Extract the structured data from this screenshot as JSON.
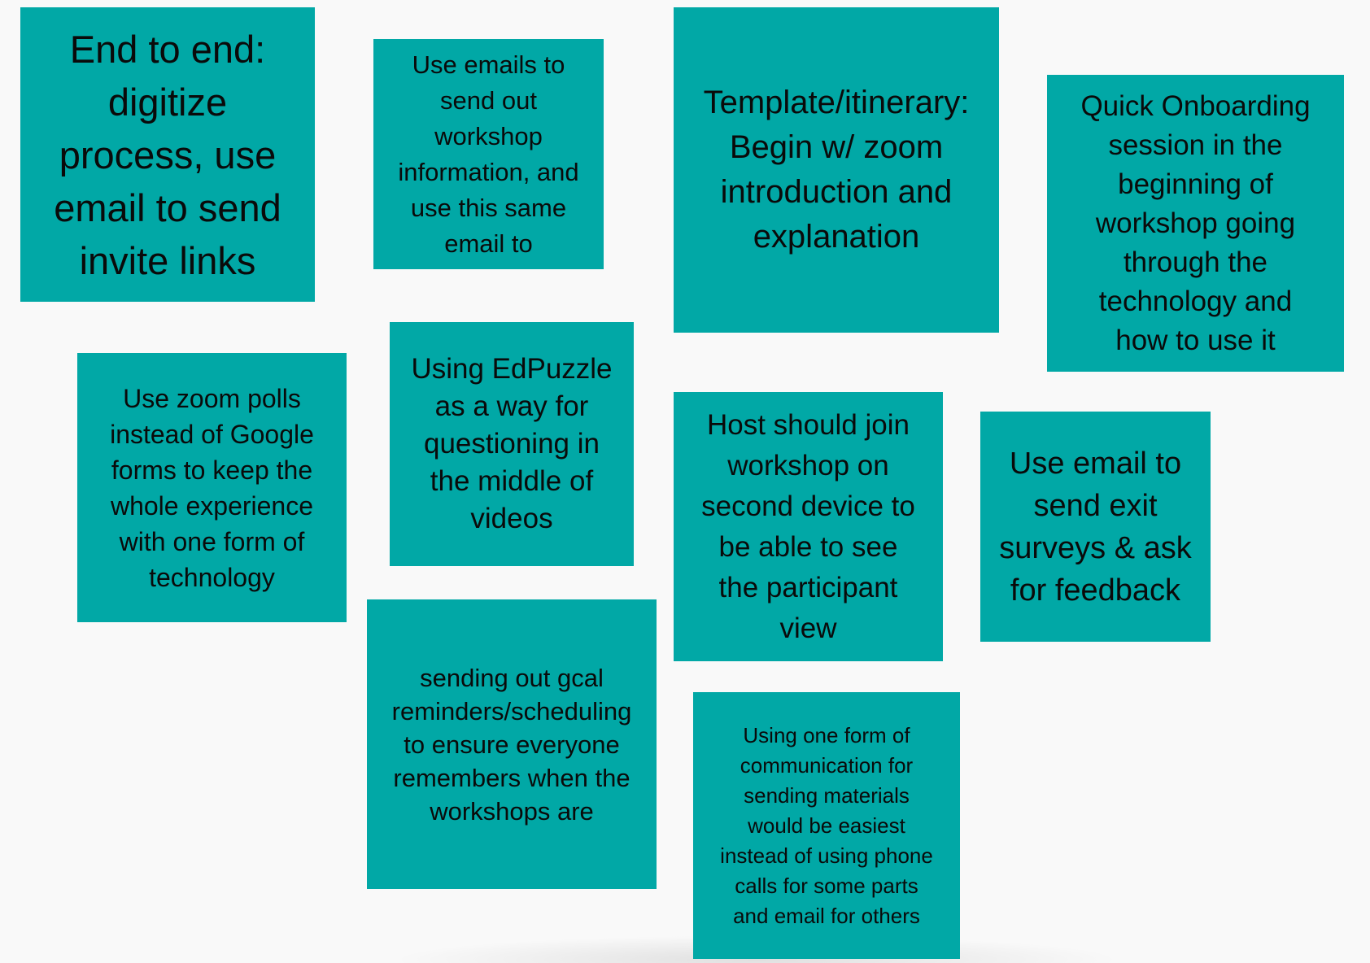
{
  "board": {
    "note_color": "#01a8a6",
    "background_color": "#f9f9f9"
  },
  "notes": [
    {
      "id": "end-to-end",
      "text": "End to end:\ndigitize\nprocess, use\nemail to send\ninvite links"
    },
    {
      "id": "use-emails",
      "text": "Use emails to\nsend out\nworkshop\ninformation, and\nuse this same\nemail to"
    },
    {
      "id": "template-itinerary",
      "text": "Template/itinerary:\nBegin w/ zoom\nintroduction and\nexplanation"
    },
    {
      "id": "quick-onboarding",
      "text": "Quick Onboarding\nsession in the\nbeginning of\nworkshop going\nthrough the\ntechnology and\nhow to use it"
    },
    {
      "id": "zoom-polls",
      "text": "Use zoom polls\ninstead of Google\nforms to keep the\nwhole experience\nwith one form of\ntechnology"
    },
    {
      "id": "edpuzzle",
      "text": "Using EdPuzzle\nas a way for\nquestioning in\nthe middle of\nvideos"
    },
    {
      "id": "host-second-device",
      "text": "Host should join\nworkshop on\nsecond device to\nbe able to see\nthe participant\nview"
    },
    {
      "id": "exit-surveys",
      "text": "Use email to\nsend exit\nsurveys & ask\nfor feedback"
    },
    {
      "id": "gcal-reminders",
      "text": "sending out gcal\nreminders/scheduling\nto ensure everyone\nremembers when the\nworkshops are"
    },
    {
      "id": "one-form-communication",
      "text": "Using one form of\ncommunication for\nsending materials\nwould be easiest\ninstead of using phone\ncalls for some parts\nand email for others"
    }
  ]
}
